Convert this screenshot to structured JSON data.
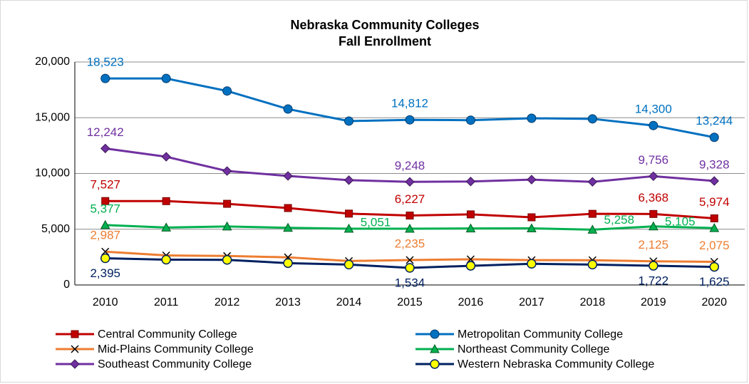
{
  "chart_data": {
    "type": "line",
    "title": "Nebraska Community Colleges",
    "subtitle": "Fall Enrollment",
    "categories": [
      "2010",
      "2011",
      "2012",
      "2013",
      "2014",
      "2015",
      "2016",
      "2017",
      "2018",
      "2019",
      "2020"
    ],
    "ylim": [
      0,
      20000
    ],
    "yticks": [
      0,
      {
        "value": 5000,
        "label": "5,000"
      },
      {
        "value": 10000,
        "label": "10,000"
      },
      {
        "value": 15000,
        "label": "15,000"
      },
      {
        "value": 20000,
        "label": "20,000"
      }
    ],
    "grid": true,
    "legend": "bottom",
    "series": [
      {
        "name": "Central Community College",
        "color": "#c00000",
        "marker": "square",
        "marker_fill": "#c00000",
        "values": [
          7527,
          7520,
          7280,
          6900,
          6400,
          6227,
          6330,
          6070,
          6380,
          6368,
          5974
        ],
        "value_labels": [
          "7,527",
          null,
          null,
          null,
          null,
          "6,227",
          null,
          null,
          null,
          "6,368",
          "5,974"
        ]
      },
      {
        "name": "Metropolitan Community College",
        "color": "#0070c0",
        "marker": "circle",
        "marker_fill": "#0070c0",
        "values": [
          18523,
          18520,
          17400,
          15780,
          14700,
          14812,
          14780,
          14950,
          14900,
          14300,
          13244
        ],
        "value_labels": [
          "18,523",
          null,
          null,
          null,
          null,
          "14,812",
          null,
          null,
          null,
          "14,300",
          "13,244"
        ]
      },
      {
        "name": "Mid-Plains Community College",
        "color": "#ed7d31",
        "marker": "x",
        "marker_fill": "#000000",
        "values": [
          2987,
          2650,
          2600,
          2480,
          2150,
          2235,
          2300,
          2230,
          2220,
          2125,
          2075
        ],
        "value_labels": [
          "2,987",
          null,
          null,
          null,
          null,
          "2,235",
          null,
          null,
          null,
          "2,125",
          "2,075"
        ]
      },
      {
        "name": "Northeast Community College",
        "color": "#00b050",
        "marker": "triangle",
        "marker_fill": "#00b050",
        "values": [
          5377,
          5150,
          5250,
          5130,
          5050,
          5051,
          5070,
          5080,
          4960,
          5258,
          5105
        ],
        "value_labels": [
          "5,377",
          null,
          null,
          null,
          null,
          "5,051",
          null,
          null,
          null,
          "5,258",
          "5,105"
        ]
      },
      {
        "name": "Southeast Community College",
        "color": "#7030a0",
        "marker": "diamond",
        "marker_fill": "#7030a0",
        "values": [
          12242,
          11500,
          10220,
          9780,
          9400,
          9248,
          9280,
          9450,
          9250,
          9756,
          9328
        ],
        "value_labels": [
          "12,242",
          null,
          null,
          null,
          null,
          "9,248",
          null,
          null,
          null,
          "9,756",
          "9,328"
        ]
      },
      {
        "name": "Western Nebraska Community College",
        "color": "#002060",
        "marker": "circle",
        "marker_fill": "#ffff00",
        "values": [
          2395,
          2270,
          2250,
          1960,
          1830,
          1534,
          1720,
          1900,
          1830,
          1722,
          1625
        ],
        "value_labels": [
          "2,395",
          null,
          null,
          null,
          null,
          "1,534",
          null,
          null,
          null,
          "1,722",
          "1,625"
        ]
      }
    ]
  }
}
